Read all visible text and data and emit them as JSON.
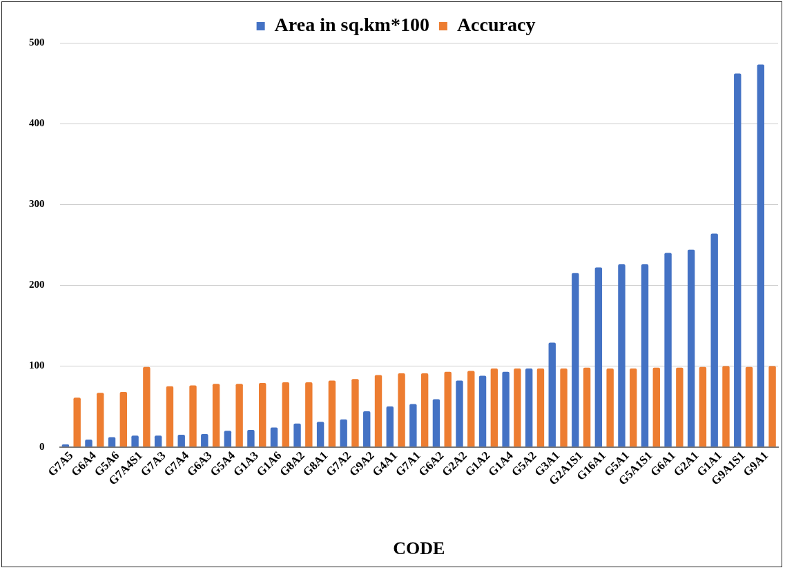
{
  "chart_data": {
    "type": "bar",
    "xlabel": "CODE",
    "categories": [
      "G7A5",
      "G6A4",
      "G5A6",
      "G7A4S1",
      "G7A3",
      "G7A4",
      "G6A3",
      "G5A4",
      "G1A3",
      "G1A6",
      "G8A2",
      "G8A1",
      "G7A2",
      "G9A2",
      "G4A1",
      "G7A1",
      "G6A2",
      "G2A2",
      "G1A2",
      "G1A4",
      "G5A2",
      "G3A1",
      "G2A1S1",
      "G16A1",
      "G5A1",
      "G5A1S1",
      "G6A1",
      "G2A1",
      "G1A1",
      "G9A1S1",
      "G9A1"
    ],
    "series": [
      {
        "name": "Area in sq.km*100",
        "color": "#4472c4",
        "values": [
          3,
          9,
          12,
          14,
          14,
          15,
          16,
          20,
          21,
          24,
          29,
          31,
          34,
          44,
          50,
          53,
          59,
          82,
          88,
          93,
          97,
          129,
          215,
          222,
          226,
          226,
          240,
          244,
          264,
          462,
          473
        ]
      },
      {
        "name": "Accuracy",
        "color": "#ed7d31",
        "values": [
          61,
          67,
          68,
          99,
          75,
          76,
          78,
          78,
          79,
          80,
          80,
          82,
          84,
          89,
          91,
          91,
          93,
          94,
          97,
          97,
          97,
          97,
          98,
          97,
          97,
          98,
          98,
          99,
          100,
          99,
          100
        ]
      }
    ],
    "ylim": [
      0,
      500
    ],
    "yticks": [
      0,
      100,
      200,
      300,
      400,
      500
    ],
    "grid": "y",
    "legend": "top"
  }
}
